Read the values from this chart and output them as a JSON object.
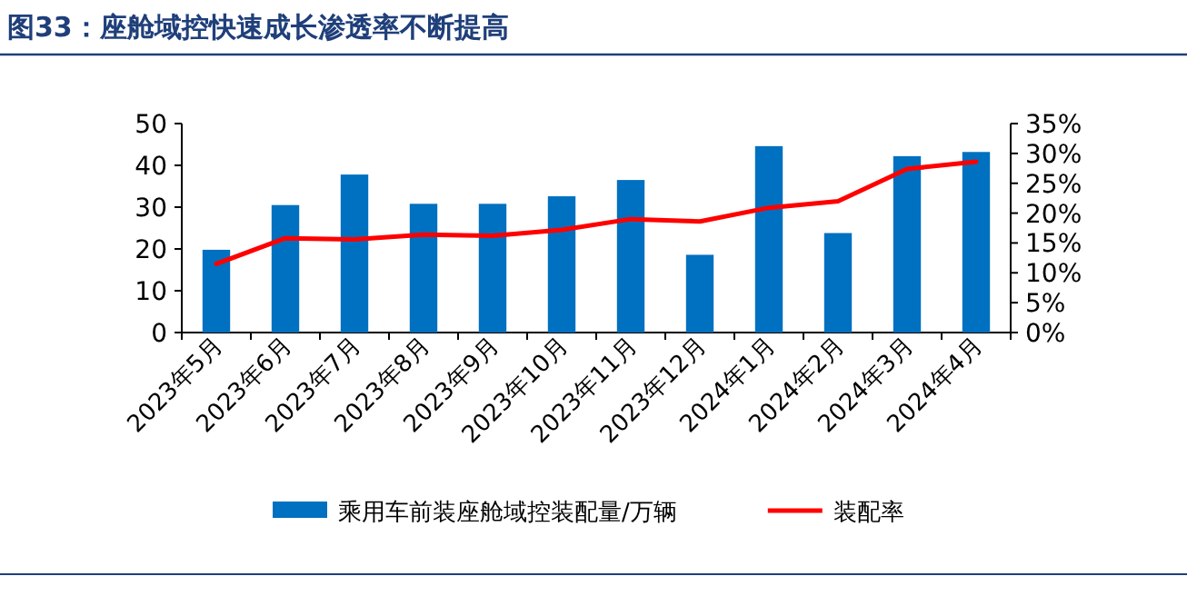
{
  "chart_data": {
    "type": "bar",
    "title": "图33：座舱域控快速成长渗透率不断提高",
    "categories": [
      "2023年5月",
      "2023年6月",
      "2023年7月",
      "2023年8月",
      "2023年9月",
      "2023年10月",
      "2023年11月",
      "2023年12月",
      "2024年1月",
      "2024年2月",
      "2024年3月",
      "2024年4月"
    ],
    "series": [
      {
        "name": "乘用车前装座舱域控装配量/万辆",
        "color": "#0070c0",
        "values": [
          19.8,
          30.5,
          37.8,
          30.8,
          30.8,
          32.6,
          36.5,
          18.6,
          44.6,
          23.8,
          42.2,
          43.2
        ]
      },
      {
        "name": "装配率",
        "type": "line",
        "axis": "y2",
        "color": "#ff0000",
        "values": [
          11.5,
          15.8,
          15.6,
          16.4,
          16.2,
          17.2,
          19.0,
          18.6,
          20.9,
          22.0,
          27.4,
          28.6
        ]
      }
    ],
    "ylim": [
      0,
      50
    ],
    "yticks": [
      0,
      10,
      20,
      30,
      40,
      50
    ],
    "y2lim": [
      0,
      35
    ],
    "y2ticks": [
      {
        "value": 0,
        "label": "0%"
      },
      {
        "value": 5,
        "label": "5%"
      },
      {
        "value": 10,
        "label": "10%"
      },
      {
        "value": 15,
        "label": "15%"
      },
      {
        "value": 20,
        "label": "20%"
      },
      {
        "value": 25,
        "label": "25%"
      },
      {
        "value": 30,
        "label": "30%"
      },
      {
        "value": 35,
        "label": "35%"
      }
    ],
    "legend": "bottom"
  }
}
